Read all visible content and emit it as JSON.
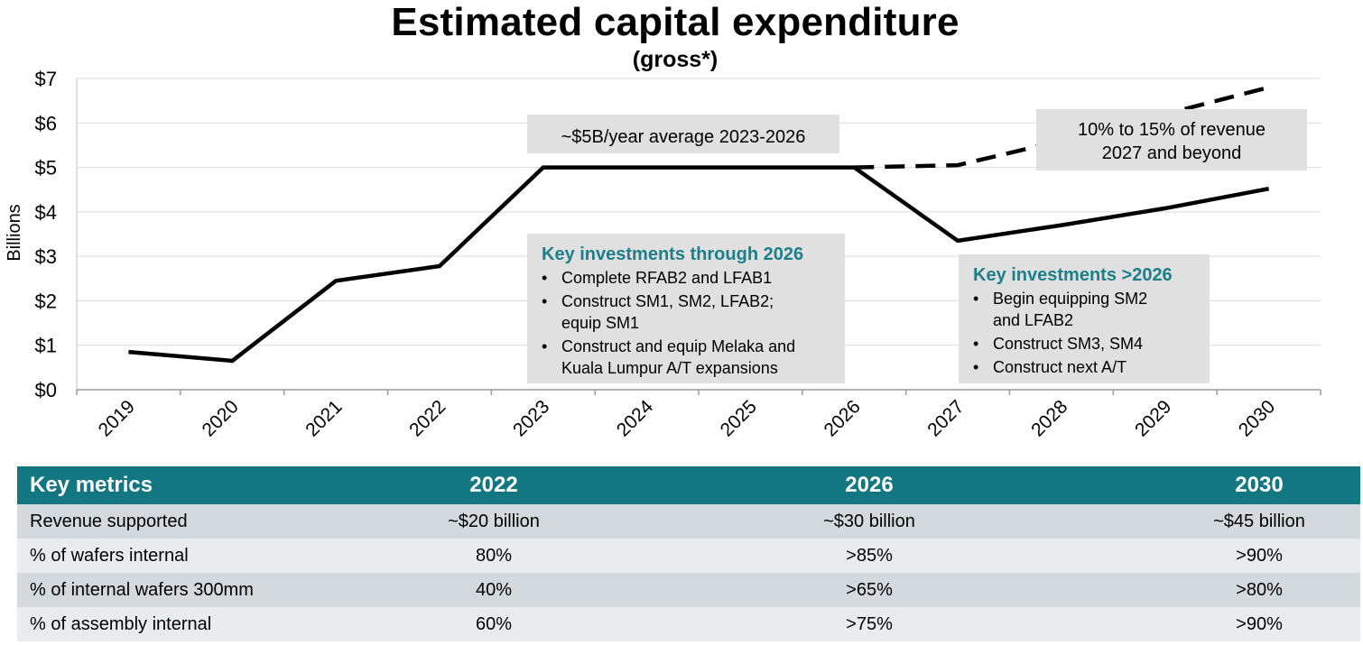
{
  "chart_data": {
    "type": "line",
    "title": "Estimated capital expenditure",
    "subtitle": "(gross*)",
    "ylabel": "Billions",
    "ylim": [
      0,
      7
    ],
    "yticks": [
      "$0",
      "$1",
      "$2",
      "$3",
      "$4",
      "$5",
      "$6",
      "$7"
    ],
    "categories": [
      "2019",
      "2020",
      "2021",
      "2022",
      "2023",
      "2024",
      "2025",
      "2026",
      "2027",
      "2028",
      "2029",
      "2030"
    ],
    "grid": true,
    "series": [
      {
        "style": "solid",
        "color": "#000000",
        "values": [
          0.85,
          0.65,
          2.45,
          2.78,
          5.0,
          5.0,
          5.0,
          5.0,
          3.35,
          3.7,
          4.08,
          4.52
        ]
      },
      {
        "style": "dashed",
        "color": "#000000",
        "values": [
          null,
          null,
          null,
          null,
          null,
          null,
          null,
          5.0,
          5.05,
          5.6,
          6.2,
          6.8
        ]
      }
    ],
    "annotations": {
      "avg_note": "~$5B/year average 2023-2026",
      "revenue_note_line1": "10% to 15% of revenue",
      "revenue_note_line2": "2027 and beyond",
      "investments_2026": {
        "title": "Key investments through 2026",
        "bullets": [
          [
            "Complete RFAB2 and LFAB1"
          ],
          [
            "Construct SM1, SM2, LFAB2;",
            "equip SM1"
          ],
          [
            "Construct and equip Melaka and",
            "Kuala Lumpur A/T expansions"
          ]
        ]
      },
      "investments_after": {
        "title": "Key investments >2026",
        "bullets": [
          [
            "Begin equipping SM2",
            "and LFAB2"
          ],
          [
            "Construct SM3, SM4"
          ],
          [
            "Construct next A/T"
          ]
        ]
      }
    }
  },
  "table": {
    "headers": [
      "Key metrics",
      "2022",
      "2026",
      "2030"
    ],
    "rows": [
      [
        "Revenue supported",
        "~$20 billion",
        "~$30 billion",
        "~$45 billion"
      ],
      [
        "% of wafers internal",
        "80%",
        ">85%",
        ">90%"
      ],
      [
        "% of internal wafers 300mm",
        "40%",
        ">65%",
        ">80%"
      ],
      [
        "% of assembly internal",
        "60%",
        ">75%",
        ">90%"
      ]
    ]
  },
  "colors": {
    "header_bg": "#137782",
    "accent_text": "#1d7f8a",
    "annotation_bg": "#e0e0e0",
    "row_dark": "#d3d9dd",
    "row_light": "#e9ecef",
    "grid": "#d9d9d9"
  }
}
